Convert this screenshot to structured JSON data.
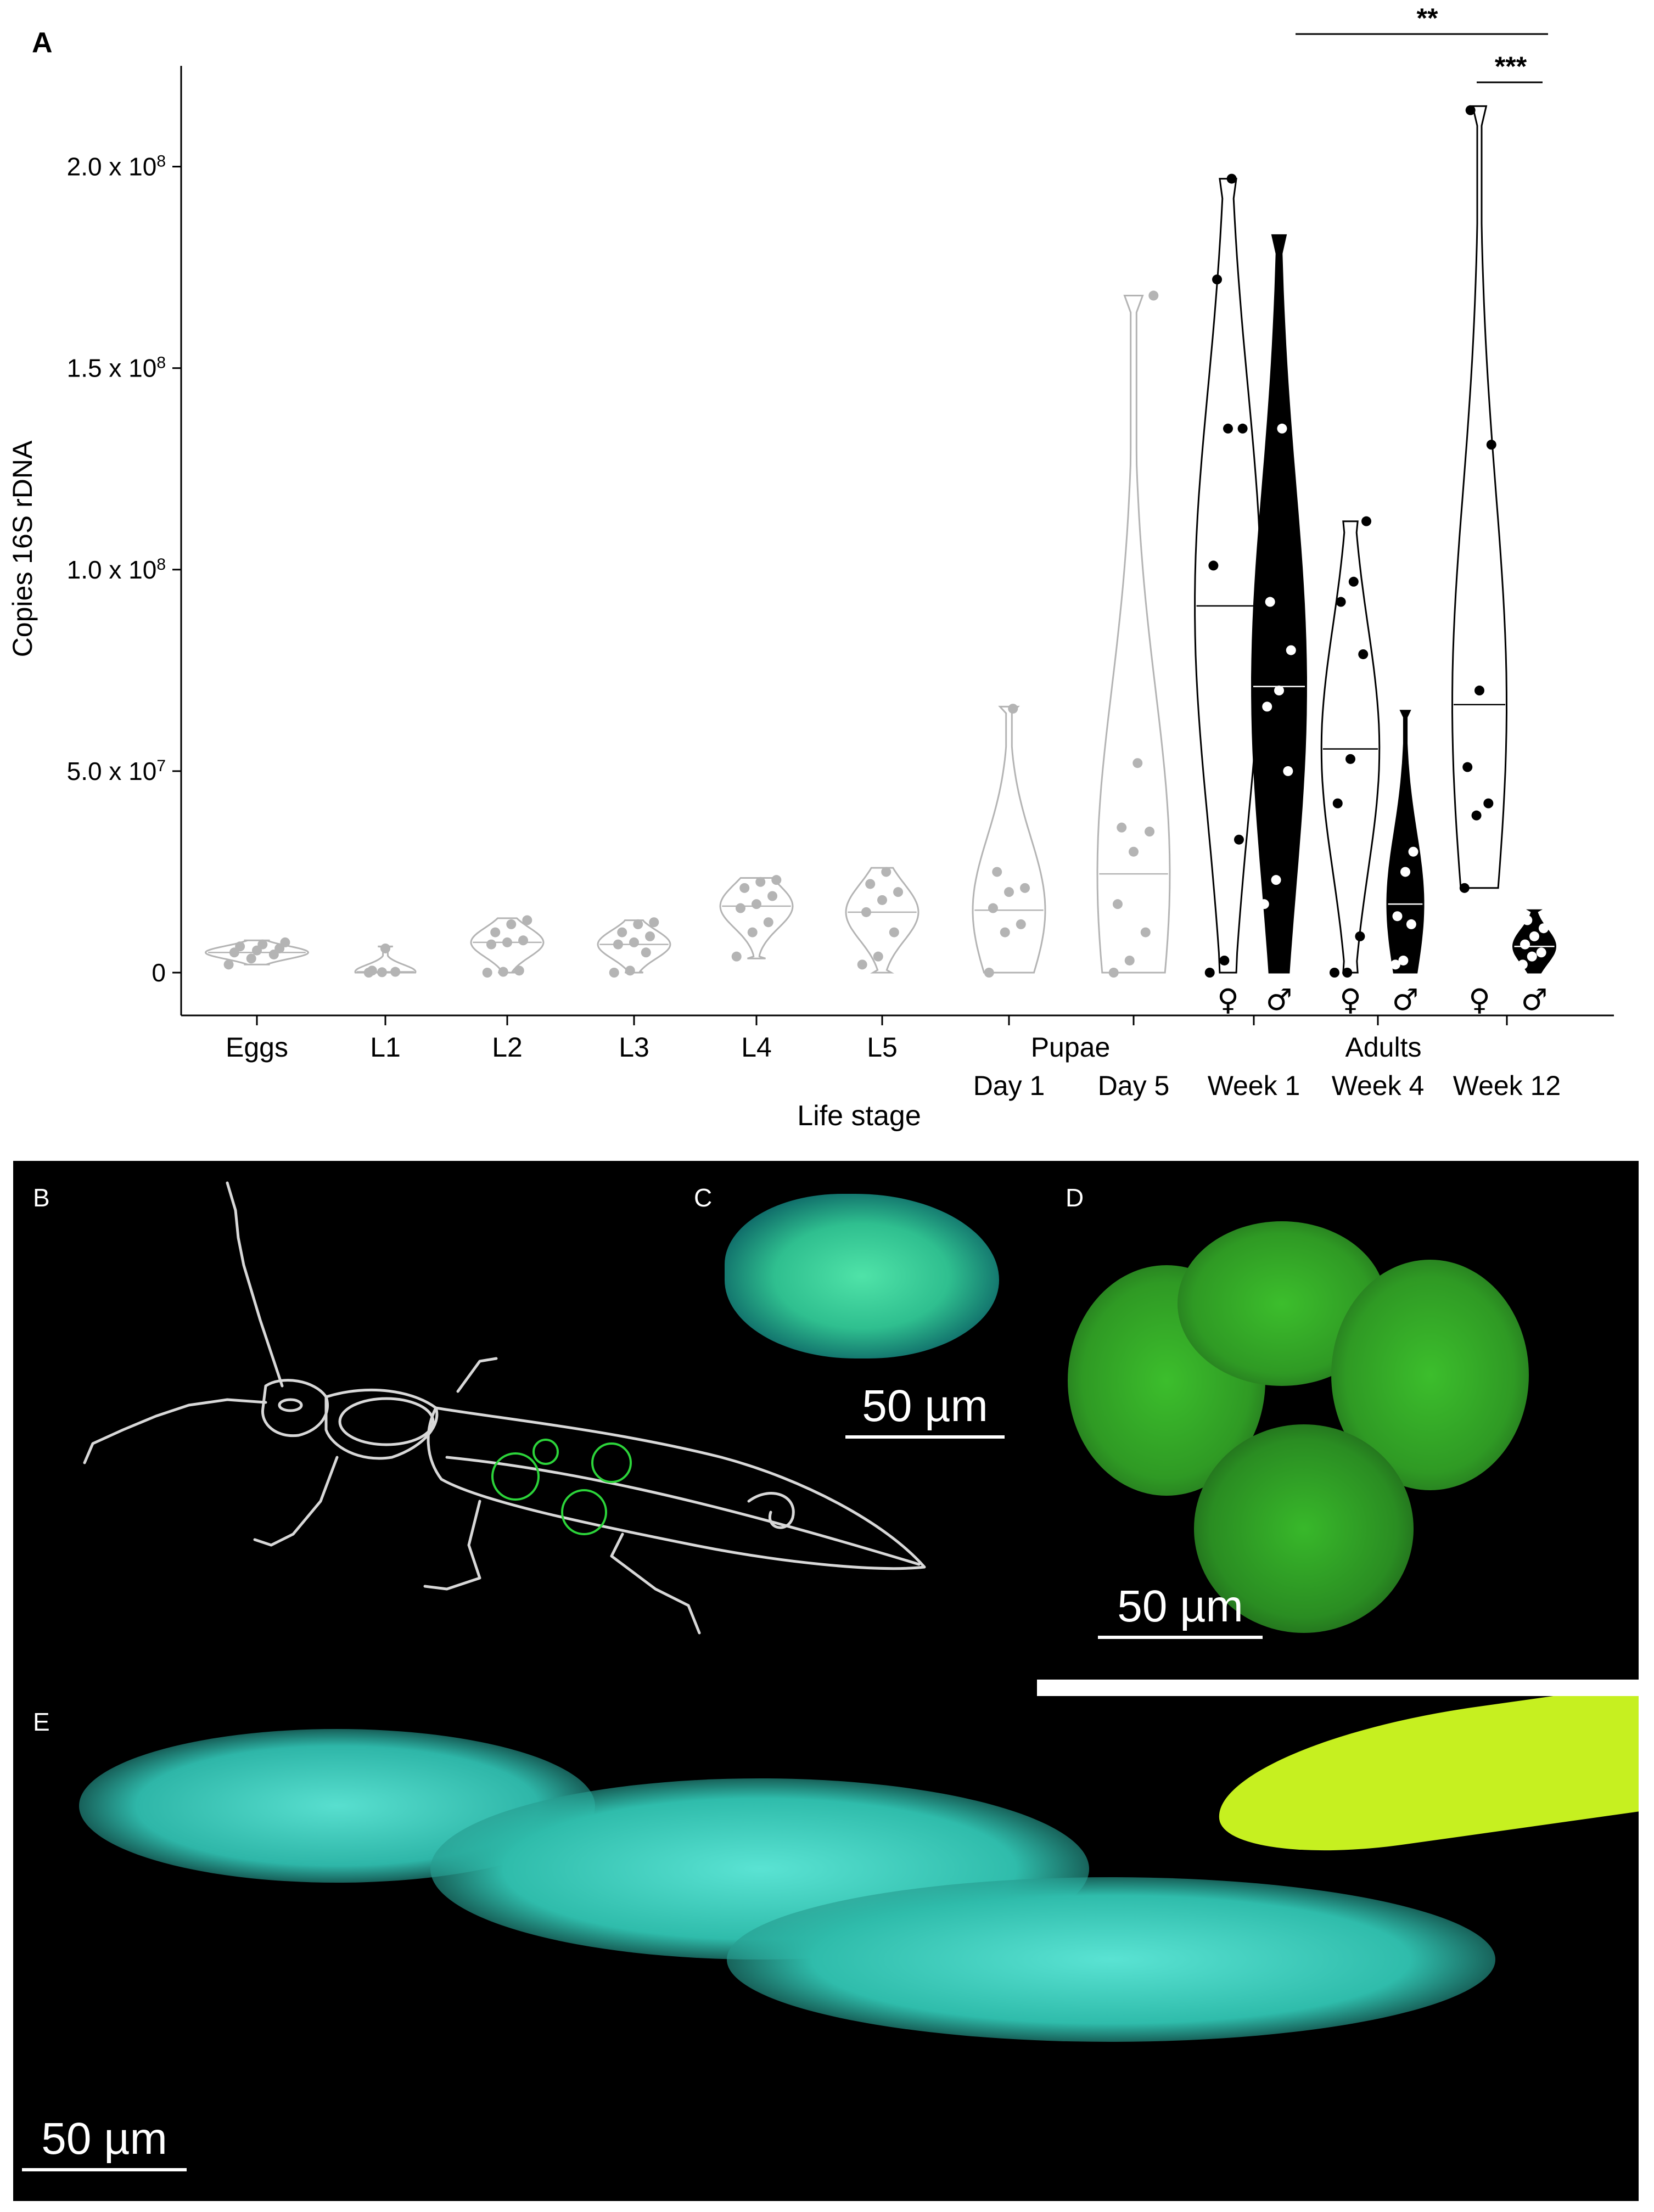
{
  "figure": {
    "panel_a_label": "A",
    "panel_b_label": "B",
    "panel_c_label": "C",
    "panel_d_label": "D",
    "panel_e_label": "E",
    "scale_c": "50 µm",
    "scale_d": "50 µm",
    "scale_e": "50 µm"
  },
  "chart_data": {
    "type": "violin",
    "title": "",
    "xlabel": "Life stage",
    "ylabel": "Copies 16S rDNA",
    "ylim": [
      0,
      225000000
    ],
    "y_ticks": [
      {
        "value": 0,
        "label": "0",
        "exp": ""
      },
      {
        "value": 50000000,
        "label": "5.0 x 10",
        "exp": "7"
      },
      {
        "value": 100000000,
        "label": "1.0 x 10",
        "exp": "8"
      },
      {
        "value": 150000000,
        "label": "1.5 x 10",
        "exp": "8"
      },
      {
        "value": 200000000,
        "label": "2.0 x 10",
        "exp": "8"
      }
    ],
    "x_tick_labels": [
      "Eggs",
      "L1",
      "L2",
      "L3",
      "L4",
      "L5",
      "Day 1",
      "Day 5",
      "Week 1",
      "Week 4",
      "Week 12"
    ],
    "group_labels": [
      "Pupae",
      "Adults"
    ],
    "sex_symbols": [
      "♀",
      "♂",
      "♀",
      "♂",
      "♀",
      "♂"
    ],
    "significance": [
      "**",
      "***"
    ],
    "colors": {
      "juvenile": "#b4b4b4",
      "female_fill": "#ffffff",
      "male_fill": "#000000"
    },
    "groups": [
      {
        "label": "Eggs",
        "median": 5000000,
        "min": 2000000,
        "max": 8000000,
        "width_max": 0.85,
        "style": "grey",
        "points": [
          2000000,
          3500000,
          4500000,
          5000000,
          5500000,
          6000000,
          6500000,
          7000000,
          7500000
        ]
      },
      {
        "label": "L1",
        "median": 200000,
        "min": 0,
        "max": 6500000,
        "width_max": 0.5,
        "style": "grey",
        "points": [
          0,
          100000,
          200000,
          500000,
          6000000
        ]
      },
      {
        "label": "L2",
        "median": 7500000,
        "min": 0,
        "max": 13500000,
        "width_max": 0.6,
        "style": "grey",
        "points": [
          0,
          200000,
          500000,
          7000000,
          7500000,
          8000000,
          10000000,
          12000000,
          13000000
        ]
      },
      {
        "label": "L3",
        "median": 7000000,
        "min": 0,
        "max": 13000000,
        "width_max": 0.6,
        "style": "grey",
        "points": [
          0,
          500000,
          5000000,
          7000000,
          7500000,
          9000000,
          10000000,
          12000000,
          12500000
        ]
      },
      {
        "label": "L4",
        "median": 16500000,
        "min": 3500000,
        "max": 23500000,
        "width_max": 0.6,
        "style": "grey",
        "points": [
          4000000,
          10000000,
          12500000,
          16000000,
          17000000,
          19000000,
          21000000,
          22500000,
          23000000
        ]
      },
      {
        "label": "L5",
        "median": 15000000,
        "min": 0,
        "max": 26000000,
        "width_max": 0.6,
        "style": "grey",
        "points": [
          2000000,
          4000000,
          10000000,
          15000000,
          18000000,
          20000000,
          22000000,
          25000000
        ]
      },
      {
        "label": "Day 1",
        "median": 15500000,
        "min": 0,
        "max": 66000000,
        "width_max": 0.6,
        "style": "grey",
        "points": [
          0,
          10000000,
          12000000,
          16000000,
          20000000,
          21000000,
          25000000,
          65500000
        ]
      },
      {
        "label": "Day 5",
        "median": 24500000,
        "min": 0,
        "max": 168000000,
        "width_max": 0.6,
        "style": "grey",
        "points": [
          0,
          3000000,
          10000000,
          17000000,
          30000000,
          35000000,
          36000000,
          52000000,
          168000000
        ]
      },
      {
        "label": "Week 1 ♀",
        "median": 91000000,
        "min": 0,
        "max": 197000000,
        "width_max": 0.55,
        "style": "female",
        "points": [
          0,
          3000000,
          33000000,
          101000000,
          135000000,
          135000000,
          172000000,
          197000000
        ]
      },
      {
        "label": "Week 1 ♂",
        "median": 71000000,
        "min": 0,
        "max": 183000000,
        "width_max": 0.45,
        "style": "male",
        "points": [
          17000000,
          23000000,
          50000000,
          66000000,
          70000000,
          80000000,
          92000000,
          135000000,
          152000000
        ]
      },
      {
        "label": "Week 4 ♀",
        "median": 55500000,
        "min": 0,
        "max": 112000000,
        "width_max": 0.48,
        "style": "female",
        "points": [
          0,
          0,
          9000000,
          42000000,
          53000000,
          79000000,
          92000000,
          97000000,
          112000000
        ]
      },
      {
        "label": "Week 4 ♂",
        "median": 17000000,
        "min": 0,
        "max": 65000000,
        "width_max": 0.3,
        "style": "male",
        "points": [
          2000000,
          3000000,
          12000000,
          14000000,
          25000000,
          30000000
        ]
      },
      {
        "label": "Week 12 ♀",
        "median": 66500000,
        "min": 21000000,
        "max": 215000000,
        "width_max": 0.45,
        "style": "female",
        "points": [
          21000000,
          39000000,
          42000000,
          51000000,
          70000000,
          131000000,
          214000000
        ]
      },
      {
        "label": "Week 12 ♂",
        "median": 6500000,
        "min": 0,
        "max": 15500000,
        "width_max": 0.35,
        "style": "male",
        "points": [
          2000000,
          4000000,
          5000000,
          7000000,
          9000000,
          11000000,
          13000000
        ]
      }
    ]
  }
}
